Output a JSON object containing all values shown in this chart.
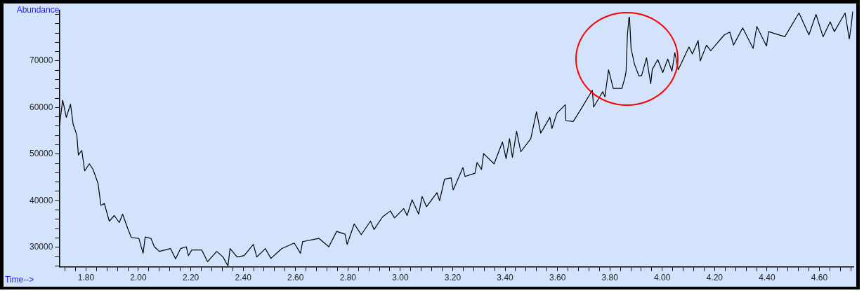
{
  "chart_data": {
    "type": "line",
    "xlabel": "Time-->",
    "ylabel": "Abundance",
    "color": "#000000",
    "grid": false,
    "legend": false,
    "marker": "none",
    "line_style": "solid",
    "xlim": [
      1.698,
      4.73
    ],
    "ylim": [
      25800,
      80800
    ],
    "x": [
      1.698,
      1.711,
      1.725,
      1.741,
      1.751,
      1.765,
      1.771,
      1.784,
      1.795,
      1.813,
      1.827,
      1.846,
      1.857,
      1.87,
      1.889,
      1.908,
      1.927,
      1.94,
      1.959,
      1.973,
      2.002,
      2.018,
      2.026,
      2.048,
      2.061,
      2.08,
      2.123,
      2.142,
      2.161,
      2.183,
      2.191,
      2.204,
      2.242,
      2.264,
      2.299,
      2.323,
      2.342,
      2.35,
      2.377,
      2.404,
      2.439,
      2.452,
      2.485,
      2.506,
      2.547,
      2.595,
      2.619,
      2.627,
      2.689,
      2.727,
      2.757,
      2.789,
      2.797,
      2.824,
      2.851,
      2.886,
      2.9,
      2.932,
      2.962,
      2.978,
      3.013,
      3.026,
      3.045,
      3.07,
      3.083,
      3.1,
      3.14,
      3.15,
      3.169,
      3.194,
      3.202,
      3.239,
      3.247,
      3.285,
      3.293,
      3.31,
      3.318,
      3.358,
      3.39,
      3.404,
      3.417,
      3.428,
      3.444,
      3.46,
      3.498,
      3.52,
      3.536,
      3.571,
      3.579,
      3.598,
      3.63,
      3.632,
      3.66,
      3.687,
      3.733,
      3.738,
      3.773,
      3.781,
      3.795,
      3.813,
      3.846,
      3.857,
      3.862,
      3.867,
      3.873,
      3.875,
      3.881,
      3.894,
      3.911,
      3.921,
      3.94,
      3.956,
      3.962,
      3.983,
      4.002,
      4.021,
      4.037,
      4.048,
      4.061,
      4.102,
      4.115,
      4.137,
      4.145,
      4.169,
      4.185,
      4.237,
      4.258,
      4.272,
      4.307,
      4.347,
      4.361,
      4.398,
      4.406,
      4.468,
      4.522,
      4.56,
      4.587,
      4.614,
      4.641,
      4.657,
      4.698,
      4.714,
      4.722,
      4.727
    ],
    "values": [
      55700,
      61600,
      57900,
      60700,
      56400,
      54100,
      49800,
      50800,
      46400,
      47900,
      46700,
      43700,
      39000,
      39400,
      35600,
      36800,
      35300,
      37100,
      34100,
      32100,
      31900,
      28700,
      32200,
      31900,
      30100,
      29100,
      29700,
      27500,
      29700,
      30100,
      28200,
      29400,
      29400,
      26900,
      29100,
      27900,
      26000,
      29700,
      27900,
      28200,
      30600,
      27900,
      29700,
      27600,
      29700,
      30900,
      28700,
      31200,
      31900,
      30100,
      33400,
      32800,
      30600,
      35000,
      32700,
      35600,
      33800,
      36500,
      37800,
      36300,
      38300,
      36800,
      40200,
      37100,
      40900,
      38700,
      41700,
      40000,
      44600,
      44900,
      42300,
      47100,
      45200,
      45900,
      48200,
      46700,
      50100,
      47900,
      52600,
      49000,
      53300,
      49300,
      54900,
      50500,
      53300,
      59100,
      54500,
      57900,
      55500,
      58800,
      60600,
      57200,
      57000,
      59400,
      63700,
      60100,
      63400,
      62300,
      68100,
      64100,
      64100,
      66300,
      67800,
      75600,
      79300,
      79400,
      72700,
      69300,
      66800,
      66800,
      70700,
      65100,
      68200,
      70300,
      67500,
      70400,
      67800,
      71800,
      68100,
      73000,
      71500,
      74400,
      70000,
      73400,
      72200,
      75600,
      76200,
      73400,
      77100,
      72700,
      77400,
      73200,
      76300,
      75200,
      80300,
      75600,
      80000,
      75200,
      78400,
      76300,
      80300,
      74700,
      77800,
      80600
    ],
    "xticks": [
      {
        "value": 1.72,
        "label": null
      },
      {
        "value": 1.76,
        "label": null
      },
      {
        "value": 1.8,
        "label": "1.80"
      },
      {
        "value": 1.84,
        "label": null
      },
      {
        "value": 1.88,
        "label": null
      },
      {
        "value": 1.92,
        "label": null
      },
      {
        "value": 1.96,
        "label": null
      },
      {
        "value": 2.0,
        "label": "2.00"
      },
      {
        "value": 2.04,
        "label": null
      },
      {
        "value": 2.08,
        "label": null
      },
      {
        "value": 2.12,
        "label": null
      },
      {
        "value": 2.16,
        "label": null
      },
      {
        "value": 2.2,
        "label": "2.20"
      },
      {
        "value": 2.24,
        "label": null
      },
      {
        "value": 2.28,
        "label": null
      },
      {
        "value": 2.32,
        "label": null
      },
      {
        "value": 2.36,
        "label": null
      },
      {
        "value": 2.4,
        "label": "2.40"
      },
      {
        "value": 2.44,
        "label": null
      },
      {
        "value": 2.48,
        "label": null
      },
      {
        "value": 2.52,
        "label": null
      },
      {
        "value": 2.56,
        "label": null
      },
      {
        "value": 2.6,
        "label": "2.60"
      },
      {
        "value": 2.64,
        "label": null
      },
      {
        "value": 2.68,
        "label": null
      },
      {
        "value": 2.72,
        "label": null
      },
      {
        "value": 2.76,
        "label": null
      },
      {
        "value": 2.8,
        "label": "2.80"
      },
      {
        "value": 2.84,
        "label": null
      },
      {
        "value": 2.88,
        "label": null
      },
      {
        "value": 2.92,
        "label": null
      },
      {
        "value": 2.96,
        "label": null
      },
      {
        "value": 3.0,
        "label": "3.00"
      },
      {
        "value": 3.04,
        "label": null
      },
      {
        "value": 3.08,
        "label": null
      },
      {
        "value": 3.12,
        "label": null
      },
      {
        "value": 3.16,
        "label": null
      },
      {
        "value": 3.2,
        "label": "3.20"
      },
      {
        "value": 3.24,
        "label": null
      },
      {
        "value": 3.28,
        "label": null
      },
      {
        "value": 3.32,
        "label": null
      },
      {
        "value": 3.36,
        "label": null
      },
      {
        "value": 3.4,
        "label": "3.40"
      },
      {
        "value": 3.44,
        "label": null
      },
      {
        "value": 3.48,
        "label": null
      },
      {
        "value": 3.52,
        "label": null
      },
      {
        "value": 3.56,
        "label": null
      },
      {
        "value": 3.6,
        "label": "3.60"
      },
      {
        "value": 3.64,
        "label": null
      },
      {
        "value": 3.68,
        "label": null
      },
      {
        "value": 3.72,
        "label": null
      },
      {
        "value": 3.76,
        "label": null
      },
      {
        "value": 3.8,
        "label": "3.80"
      },
      {
        "value": 3.84,
        "label": null
      },
      {
        "value": 3.88,
        "label": null
      },
      {
        "value": 3.92,
        "label": null
      },
      {
        "value": 3.96,
        "label": null
      },
      {
        "value": 4.0,
        "label": "4.00"
      },
      {
        "value": 4.04,
        "label": null
      },
      {
        "value": 4.08,
        "label": null
      },
      {
        "value": 4.12,
        "label": null
      },
      {
        "value": 4.16,
        "label": null
      },
      {
        "value": 4.2,
        "label": "4.20"
      },
      {
        "value": 4.24,
        "label": null
      },
      {
        "value": 4.28,
        "label": null
      },
      {
        "value": 4.32,
        "label": null
      },
      {
        "value": 4.36,
        "label": null
      },
      {
        "value": 4.4,
        "label": "4.40"
      },
      {
        "value": 4.44,
        "label": null
      },
      {
        "value": 4.48,
        "label": null
      },
      {
        "value": 4.52,
        "label": null
      },
      {
        "value": 4.56,
        "label": null
      },
      {
        "value": 4.6,
        "label": "4.60"
      },
      {
        "value": 4.64,
        "label": null
      },
      {
        "value": 4.68,
        "label": null
      },
      {
        "value": 4.72,
        "label": null
      }
    ],
    "yticks": [
      {
        "value": 26000,
        "label": null
      },
      {
        "value": 28000,
        "label": null
      },
      30000,
      {
        "value": 32000,
        "label": null
      },
      {
        "value": 34000,
        "label": null
      },
      {
        "value": 36000,
        "label": null
      },
      {
        "value": 38000,
        "label": null
      },
      40000,
      {
        "value": 42000,
        "label": null
      },
      {
        "value": 44000,
        "label": null
      },
      {
        "value": 46000,
        "label": null
      },
      {
        "value": 48000,
        "label": null
      },
      50000,
      {
        "value": 52000,
        "label": null
      },
      {
        "value": 54000,
        "label": null
      },
      {
        "value": 56000,
        "label": null
      },
      {
        "value": 58000,
        "label": null
      },
      60000,
      {
        "value": 62000,
        "label": null
      },
      {
        "value": 64000,
        "label": null
      },
      {
        "value": 66000,
        "label": null
      },
      {
        "value": 68000,
        "label": null
      },
      70000,
      {
        "value": 72000,
        "label": null
      },
      {
        "value": 74000,
        "label": null
      },
      {
        "value": 76000,
        "label": null
      },
      {
        "value": 78000,
        "label": null
      },
      {
        "value": 80000,
        "label": null
      }
    ]
  }
}
